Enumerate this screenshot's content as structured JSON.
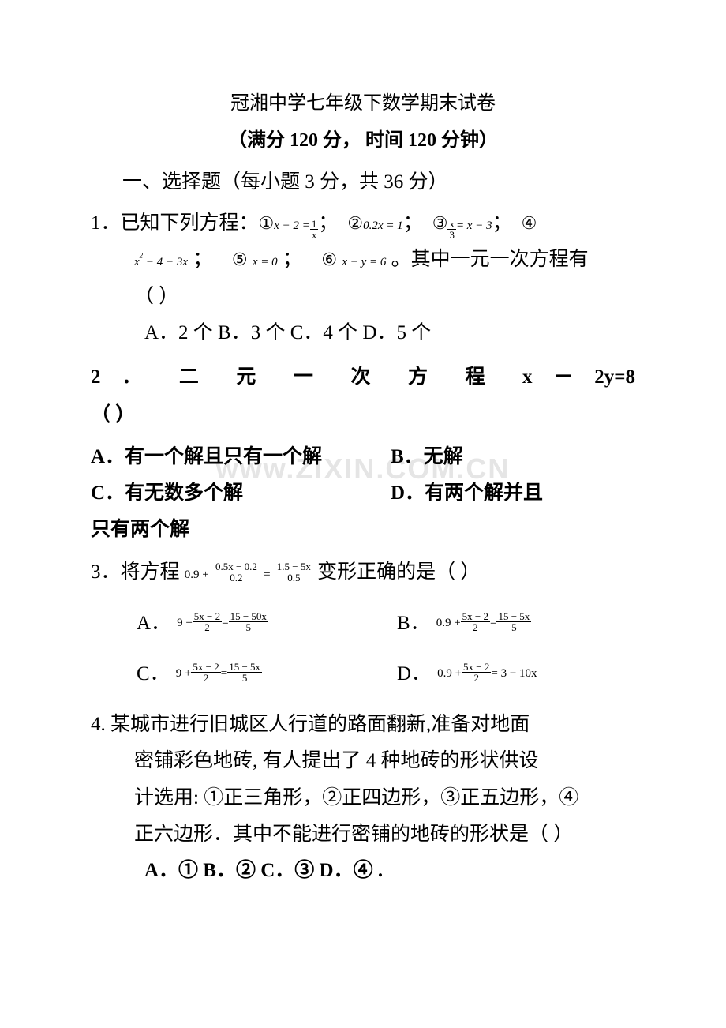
{
  "header": {
    "title": "冠湘中学七年级下数学期末试卷",
    "subtitle": "（满分 120 分，    时间 120 分钟）"
  },
  "section1": {
    "heading": "一、选择题（每小题 3 分，共 36 分）"
  },
  "q1": {
    "stem_prefix": "1．已知下列方程：",
    "eq1_label": "①",
    "eq1_lhs": "x − 2 =",
    "eq1_num": "1",
    "eq1_den": "x",
    "sep": "；",
    "eq2_label": "②",
    "eq2": "0.2x = 1",
    "eq3_label": "③",
    "eq3_num": "x",
    "eq3_den": "3",
    "eq3_rhs": "= x − 3",
    "eq4_label": "④",
    "eq4": "x",
    "eq4_sup": "2",
    "eq4_rest": " − 4 − 3x",
    "eq5_label": "⑤",
    "eq5": "x = 0",
    "eq6_label": "⑥",
    "eq6": "x − y = 6",
    "stem_suffix": "。其中一元一次方程有",
    "paren": "（     ）",
    "options": "A．2 个 B．3 个    C．4 个    D．5 个"
  },
  "q2": {
    "stem": "2  ．    二   元   一   次   方   程    x   －    2y=8",
    "paren": "（     ）",
    "optA": "A．有一个解且只有一个解",
    "optB": "B．无解",
    "optC": "C．有无数多个解",
    "optD": "D．有两个解并且",
    "optD2": "只有两个解"
  },
  "q3": {
    "stem_prefix": "3．将方程",
    "lhs_const": "0.9 +",
    "lhs_num": "0.5x − 0.2",
    "lhs_den": "0.2",
    "eq": "=",
    "rhs_num": "1.5 − 5x",
    "rhs_den": "0.5",
    "stem_suffix": "变形正确的是（     ）",
    "A_label": "A．",
    "A_const": "9 +",
    "A_lnum": "5x − 2",
    "A_lden": "2",
    "A_eq": "=",
    "A_rnum": "15 − 50x",
    "A_rden": "5",
    "B_label": "B．",
    "B_const": "0.9 +",
    "B_lnum": "5x − 2",
    "B_lden": "2",
    "B_eq": "=",
    "B_rnum": "15 − 5x",
    "B_rden": "5",
    "C_label": "C．",
    "C_const": "9 +",
    "C_lnum": "5x − 2",
    "C_lden": "2",
    "C_eq": "=",
    "C_rnum": "15 − 5x",
    "C_rden": "5",
    "D_label": "D．",
    "D_const": "0.9 +",
    "D_lnum": "5x − 2",
    "D_lden": "2",
    "D_eq": "= 3 − 10x"
  },
  "q4": {
    "line1": "4. 某城市进行旧城区人行道的路面翻新,准备对地面",
    "line2": "密铺彩色地砖, 有人提出了 4 种地砖的形状供设",
    "line3": "计选用: ①正三角形，②正四边形，③正五边形，④",
    "line4": "正六边形．其中不能进行密铺的地砖的形状是（ ）",
    "options": "A．①   B．②     C．③     D．④   ."
  },
  "watermark": "www.ZIXIN.COM.CN"
}
